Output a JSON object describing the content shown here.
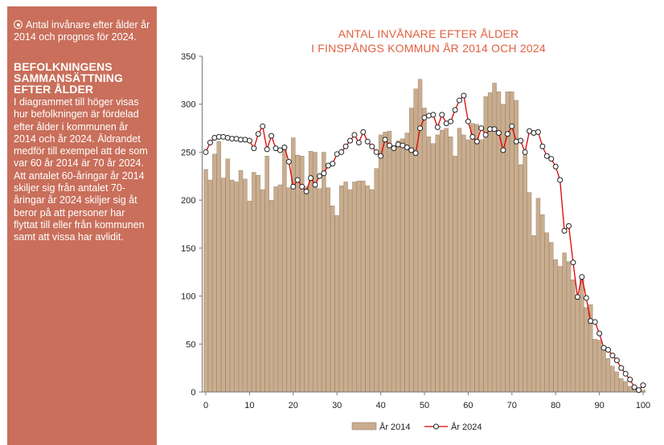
{
  "sidebar": {
    "title": "Antal invånare efter ålder år 2014 och prognos för 2024.",
    "heading": [
      "BEFOLKNINGENS",
      "SAMMANSÄTTNING",
      "EFTER ÅLDER"
    ],
    "body": "I diagrammet till höger visas hur befolkningen är fördelad efter ålder i kommunen år 2014 och år 2024. Äldrandet medför till exempel att de som var 60 år 2014 är 70 år 2024. Att antalet 60-åringar år 2014 skiljer sig från antalet 70-åringar år 2024 skiljer sig åt beror på att personer har flyttat till eller från kommunen samt att vissa har avlidit."
  },
  "colors": {
    "sidebar_bg": "#c96f5b",
    "title": "#e0603f",
    "bar_fill": "#c9ad8e",
    "bar_stroke": "#8a7157",
    "line": "#e00000",
    "marker_fill": "#ffffff",
    "marker_stroke": "#222222"
  },
  "chart_data": {
    "type": "bar",
    "title": [
      "ANTAL INVÅNARE EFTER ÅLDER",
      "I FINSPÅNGS KOMMUN ÅR 2014 OCH 2024"
    ],
    "xlabel": "",
    "ylabel": "",
    "xlim": [
      0,
      100
    ],
    "ylim": [
      0,
      350
    ],
    "x_ticks": [
      0,
      10,
      20,
      30,
      40,
      50,
      60,
      70,
      80,
      90,
      100
    ],
    "y_ticks": [
      0,
      50,
      100,
      150,
      200,
      250,
      300,
      350
    ],
    "grid": false,
    "legend_position": "bottom",
    "x": [
      0,
      1,
      2,
      3,
      4,
      5,
      6,
      7,
      8,
      9,
      10,
      11,
      12,
      13,
      14,
      15,
      16,
      17,
      18,
      19,
      20,
      21,
      22,
      23,
      24,
      25,
      26,
      27,
      28,
      29,
      30,
      31,
      32,
      33,
      34,
      35,
      36,
      37,
      38,
      39,
      40,
      41,
      42,
      43,
      44,
      45,
      46,
      47,
      48,
      49,
      50,
      51,
      52,
      53,
      54,
      55,
      56,
      57,
      58,
      59,
      60,
      61,
      62,
      63,
      64,
      65,
      66,
      67,
      68,
      69,
      70,
      71,
      72,
      73,
      74,
      75,
      76,
      77,
      78,
      79,
      80,
      81,
      82,
      83,
      84,
      85,
      86,
      87,
      88,
      89,
      90,
      91,
      92,
      93,
      94,
      95,
      96,
      97,
      98,
      99,
      100
    ],
    "series": [
      {
        "name": "År 2014",
        "type": "bar",
        "values": [
          232,
          221,
          248,
          261,
          223,
          243,
          221,
          219,
          231,
          222,
          199,
          229,
          226,
          211,
          246,
          200,
          214,
          216,
          253,
          213,
          265,
          247,
          246,
          214,
          251,
          250,
          212,
          250,
          213,
          194,
          184,
          215,
          219,
          211,
          219,
          220,
          220,
          215,
          211,
          233,
          268,
          271,
          272,
          257,
          262,
          264,
          270,
          296,
          316,
          326,
          296,
          266,
          259,
          268,
          273,
          275,
          266,
          246,
          275,
          268,
          263,
          280,
          279,
          263,
          308,
          312,
          322,
          313,
          300,
          313,
          313,
          304,
          237,
          248,
          208,
          163,
          202,
          185,
          166,
          156,
          138,
          131,
          145,
          136,
          117,
          101,
          119,
          88,
          91,
          55,
          54,
          45,
          35,
          27,
          21,
          14,
          11,
          6,
          3,
          1,
          2
        ]
      },
      {
        "name": "År 2024",
        "type": "line",
        "values": [
          250,
          260,
          265,
          266,
          266,
          265,
          264,
          264,
          263,
          263,
          262,
          254,
          269,
          277,
          253,
          267,
          254,
          252,
          255,
          240,
          214,
          221,
          214,
          209,
          223,
          216,
          225,
          228,
          236,
          238,
          248,
          250,
          256,
          262,
          268,
          260,
          271,
          261,
          256,
          250,
          246,
          263,
          257,
          254,
          258,
          257,
          255,
          252,
          249,
          275,
          286,
          288,
          289,
          276,
          289,
          280,
          282,
          294,
          304,
          309,
          282,
          266,
          261,
          275,
          268,
          274,
          274,
          270,
          252,
          269,
          277,
          261,
          262,
          250,
          272,
          270,
          271,
          256,
          246,
          243,
          235,
          221,
          168,
          173,
          135,
          99,
          120,
          98,
          74,
          73,
          61,
          46,
          44,
          38,
          33,
          25,
          19,
          13,
          5,
          2,
          7
        ]
      }
    ]
  }
}
